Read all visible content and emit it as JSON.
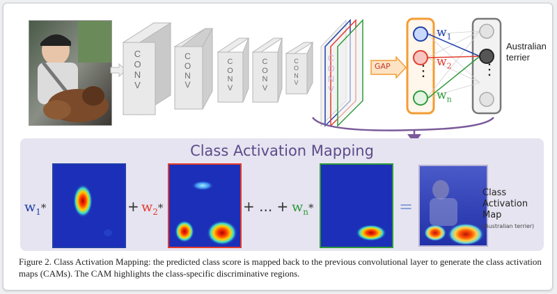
{
  "diagram": {
    "conv_blocks": [
      {
        "label": "C\nO\nN\nV"
      },
      {
        "label": "C\nO\nN\nV"
      },
      {
        "label": "C\nO\nN\nV"
      },
      {
        "label": "C\nO\nN\nV"
      },
      {
        "label": "C\nO\nN\nV"
      }
    ],
    "stack_label": "C\nO\nN\nV",
    "gap_label": "GAP",
    "weights": {
      "w1": "w",
      "w1_sub": "1",
      "w2": "w",
      "w2_sub": "2",
      "wn": "w",
      "wn_sub": "n"
    },
    "dots": "⋮",
    "output_label": "Australian\nterrier",
    "cam_title": "Class Activation Mapping",
    "equation": {
      "w1": "w",
      "w1_sub": "1",
      "star": "*",
      "plus": "+",
      "w2": "w",
      "w2_sub": "2",
      "plus_dots": "+ ... +",
      "wn": "w",
      "wn_sub": "n",
      "equals": "="
    },
    "cam_label_line1": "Class",
    "cam_label_line2": "Activation",
    "cam_label_line3": "Map",
    "cam_sublabel": "(Australian terrier)",
    "colors": {
      "blue": "#1f3fa8",
      "red": "#e23b2e",
      "green": "#2e9a3a",
      "orange": "#f39c34",
      "purple": "#6a5a9a"
    }
  },
  "caption": "Figure 2. Class Activation Mapping: the predicted class score is mapped back to the previous convolutional layer to generate the class activation maps (CAMs). The CAM highlights the class-specific discriminative regions."
}
